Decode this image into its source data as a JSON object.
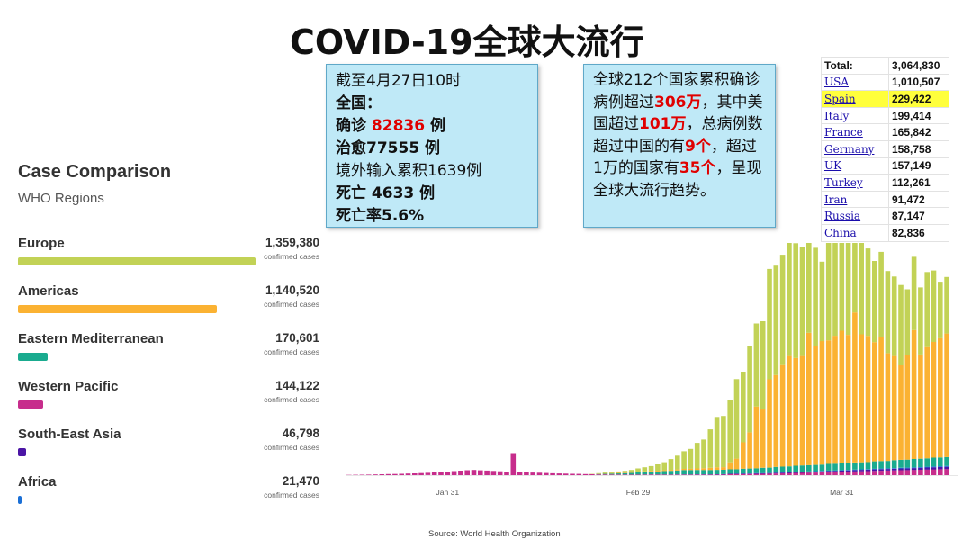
{
  "title": "COVID-19全球大流行",
  "china_box": {
    "line1": "截至4月27日10时",
    "line2": "全国：",
    "confirmed_pre": "确诊 ",
    "confirmed_num": "82836",
    "confirmed_post": " 例",
    "recovered": "治愈77555 例",
    "imported": "境外输入累积1639例",
    "deaths": "死亡 4633 例",
    "death_rate": "死亡率5.6%"
  },
  "global_box": {
    "p1": "全球212个国家累积确诊病例超过",
    "n1": "306万",
    "p2": "，其中美国超过",
    "n2": "101万",
    "p3": "，总病例数超过中国的有",
    "n3": "9个",
    "p4": "，超过1万的国家有",
    "n4": "35个",
    "p5": "，呈现全球大流行趋势。"
  },
  "comparison": {
    "title": "Case Comparison",
    "subtitle": "WHO Regions",
    "unit": "confirmed cases",
    "max": 1359380,
    "regions": [
      {
        "name": "Europe",
        "value": 1359380,
        "display": "1,359,380",
        "color": "#c2d256"
      },
      {
        "name": "Americas",
        "value": 1140520,
        "display": "1,140,520",
        "color": "#fbb232"
      },
      {
        "name": "Eastern Mediterranean",
        "value": 170601,
        "display": "170,601",
        "color": "#1aab8f"
      },
      {
        "name": "Western Pacific",
        "value": 144122,
        "display": "144,122",
        "color": "#c72d8c"
      },
      {
        "name": "South-East Asia",
        "value": 46798,
        "display": "46,798",
        "color": "#4b15a5"
      },
      {
        "name": "Africa",
        "value": 21470,
        "display": "21,470",
        "color": "#1a6fd6"
      }
    ]
  },
  "country_table": {
    "total_label": "Total:",
    "total_value": "3,064,830",
    "rows": [
      {
        "name": "USA",
        "value": "1,010,507"
      },
      {
        "name": "Spain",
        "value": "229,422",
        "highlight": true
      },
      {
        "name": "Italy",
        "value": "199,414"
      },
      {
        "name": "France",
        "value": "165,842"
      },
      {
        "name": "Germany",
        "value": "158,758"
      },
      {
        "name": "UK",
        "value": "157,149"
      },
      {
        "name": "Turkey",
        "value": "112,261"
      },
      {
        "name": "Iran",
        "value": "91,472"
      },
      {
        "name": "Russia",
        "value": "87,147"
      },
      {
        "name": "China",
        "value": "82,836"
      }
    ]
  },
  "chart_data": {
    "type": "bar",
    "stacked": true,
    "tick_labels": [
      {
        "label": "Jan 31",
        "index": 15
      },
      {
        "label": "Feb 29",
        "index": 44
      },
      {
        "label": "Mar 31",
        "index": 75
      }
    ],
    "series_colors": [
      "#c72d8c",
      "#4b15a5",
      "#1a6fd6",
      "#1aab8f",
      "#fbb232",
      "#c2d256"
    ],
    "values": [
      [
        0.3,
        0,
        0,
        0,
        0,
        0
      ],
      [
        0.4,
        0,
        0,
        0,
        0,
        0
      ],
      [
        0.5,
        0,
        0,
        0,
        0,
        0
      ],
      [
        0.6,
        0,
        0,
        0,
        0,
        0
      ],
      [
        0.8,
        0,
        0,
        0,
        0,
        0
      ],
      [
        1,
        0,
        0,
        0,
        0,
        0
      ],
      [
        1.2,
        0,
        0,
        0,
        0,
        0
      ],
      [
        1.3,
        0,
        0,
        0,
        0,
        0
      ],
      [
        1.5,
        0,
        0,
        0,
        0,
        0
      ],
      [
        1.8,
        0,
        0,
        0,
        0,
        0
      ],
      [
        2,
        0,
        0,
        0,
        0,
        0
      ],
      [
        2.3,
        0,
        0,
        0,
        0,
        0
      ],
      [
        2.6,
        0,
        0,
        0,
        0,
        0
      ],
      [
        3.2,
        0,
        0,
        0,
        0,
        0
      ],
      [
        3.6,
        0,
        0,
        0,
        0,
        0
      ],
      [
        4,
        0,
        0,
        0,
        0,
        0
      ],
      [
        4.6,
        0,
        0,
        0,
        0,
        0
      ],
      [
        5.1,
        0,
        0,
        0,
        0,
        0
      ],
      [
        5.6,
        0,
        0,
        0,
        0,
        0
      ],
      [
        5.9,
        0,
        0,
        0,
        0,
        0
      ],
      [
        5.5,
        0,
        0,
        0,
        0,
        0
      ],
      [
        5.2,
        0,
        0,
        0,
        0,
        0
      ],
      [
        4.8,
        0,
        0,
        0,
        0,
        0
      ],
      [
        4.4,
        0,
        0,
        0,
        0,
        0
      ],
      [
        4.1,
        0,
        0,
        0,
        0,
        0
      ],
      [
        25,
        0,
        0,
        0,
        0,
        0
      ],
      [
        3.8,
        0,
        0,
        0,
        0,
        0
      ],
      [
        3.3,
        0,
        0,
        0,
        0,
        0
      ],
      [
        3,
        0,
        0,
        0,
        0,
        0
      ],
      [
        2.8,
        0,
        0,
        0,
        0,
        0
      ],
      [
        2.4,
        0,
        0,
        0,
        0,
        0
      ],
      [
        2.1,
        0,
        0,
        0,
        0,
        0
      ],
      [
        1.9,
        0,
        0,
        0,
        0,
        0
      ],
      [
        1.7,
        0,
        0,
        0,
        0,
        0
      ],
      [
        1.5,
        0,
        0,
        0,
        0,
        0
      ],
      [
        1.4,
        0,
        0,
        0,
        0,
        0
      ],
      [
        1.2,
        0,
        0,
        0,
        0,
        0
      ],
      [
        1,
        0,
        0,
        0,
        0.2,
        0.3
      ],
      [
        0.8,
        0,
        0,
        0.5,
        0.3,
        0.6
      ],
      [
        0.8,
        0,
        0,
        0.8,
        0.5,
        0.9
      ],
      [
        0.7,
        0,
        0,
        1,
        0.6,
        1.3
      ],
      [
        0.7,
        0,
        0,
        1.3,
        0.6,
        1.6
      ],
      [
        0.6,
        0.1,
        0,
        1.6,
        0.7,
        1.9
      ],
      [
        0.6,
        0.1,
        0,
        2,
        0.8,
        2.4
      ],
      [
        0.6,
        0.1,
        0,
        2.4,
        0.9,
        3.6
      ],
      [
        0.6,
        0.1,
        0,
        2.8,
        0.9,
        4.6
      ],
      [
        0.6,
        0.2,
        0,
        3.2,
        0.9,
        5.4
      ],
      [
        0.5,
        0.2,
        0,
        3.5,
        0.9,
        7.1
      ],
      [
        0.5,
        0.2,
        0,
        4,
        1,
        9
      ],
      [
        0.5,
        0.2,
        0,
        4.2,
        1.1,
        12.3
      ],
      [
        0.5,
        0.2,
        0.1,
        4.5,
        1.2,
        15.6
      ],
      [
        0.5,
        0.2,
        0.1,
        5,
        1.3,
        20
      ],
      [
        0.5,
        0.2,
        0.1,
        5,
        1.5,
        22.5
      ],
      [
        0.5,
        0.3,
        0.1,
        5,
        1.7,
        29
      ],
      [
        0.5,
        0.3,
        0.1,
        5,
        2,
        32.5
      ],
      [
        0.5,
        0.3,
        0.1,
        5,
        2.5,
        43.5
      ],
      [
        0.5,
        0.4,
        0.1,
        5,
        3,
        57
      ],
      [
        0.6,
        0.4,
        0.1,
        5,
        3,
        58
      ],
      [
        1,
        0.5,
        0.1,
        5,
        8,
        70
      ],
      [
        1,
        0.6,
        0.2,
        5,
        12,
        90
      ],
      [
        1,
        0.6,
        0.2,
        5.5,
        30,
        80
      ],
      [
        1.2,
        0.6,
        0.2,
        5.5,
        41,
        98
      ],
      [
        1.3,
        0.7,
        0.3,
        5.5,
        70,
        94
      ],
      [
        1.4,
        0.7,
        0.3,
        6,
        66,
        100
      ],
      [
        1.6,
        0.7,
        0.3,
        6,
        100,
        125
      ],
      [
        1.8,
        0.8,
        0.3,
        6.5,
        104,
        124
      ],
      [
        2,
        0.8,
        0.4,
        6.5,
        115,
        125
      ],
      [
        2.2,
        0.9,
        0.4,
        6.5,
        125,
        131
      ],
      [
        2.4,
        1,
        0.4,
        7,
        122,
        130
      ],
      [
        2.6,
        1,
        0.4,
        7,
        124,
        124
      ],
      [
        2.8,
        1,
        0.5,
        7,
        150,
        112
      ],
      [
        3,
        1.1,
        0.5,
        7,
        135,
        111
      ],
      [
        3.2,
        1.2,
        0.5,
        7,
        140,
        90
      ],
      [
        3.5,
        1.2,
        0.5,
        7.5,
        140,
        112
      ],
      [
        3.6,
        1.3,
        0.5,
        7.5,
        145,
        113
      ],
      [
        3.8,
        1.3,
        0.6,
        8,
        150,
        106
      ],
      [
        4,
        1.4,
        0.6,
        8,
        145,
        107
      ],
      [
        4.2,
        1.5,
        0.6,
        8,
        170,
        102
      ],
      [
        4.4,
        1.6,
        0.6,
        8,
        145,
        106
      ],
      [
        4.6,
        1.6,
        0.6,
        8,
        143,
        99
      ],
      [
        4.8,
        1.7,
        0.7,
        8.5,
        135,
        92
      ],
      [
        5,
        1.8,
        0.7,
        8.5,
        140,
        97
      ],
      [
        5.2,
        1.8,
        0.7,
        8.5,
        122,
        93
      ],
      [
        5.4,
        1.9,
        0.7,
        9,
        118,
        90
      ],
      [
        5.6,
        2,
        0.8,
        9,
        107,
        91
      ],
      [
        5.8,
        2,
        0.8,
        9,
        119,
        74
      ],
      [
        6,
        2.1,
        0.8,
        9.5,
        146,
        83
      ],
      [
        6.2,
        2.2,
        0.8,
        9.5,
        118,
        76
      ],
      [
        6.4,
        2.3,
        0.9,
        9.5,
        126,
        85
      ],
      [
        6.6,
        2.4,
        0.9,
        10,
        131,
        81
      ],
      [
        6.8,
        2.4,
        0.9,
        10,
        135,
        64
      ],
      [
        7,
        2.5,
        1,
        10,
        140,
        64
      ]
    ],
    "ymax": 260
  },
  "source": "Source: World Health Organization"
}
